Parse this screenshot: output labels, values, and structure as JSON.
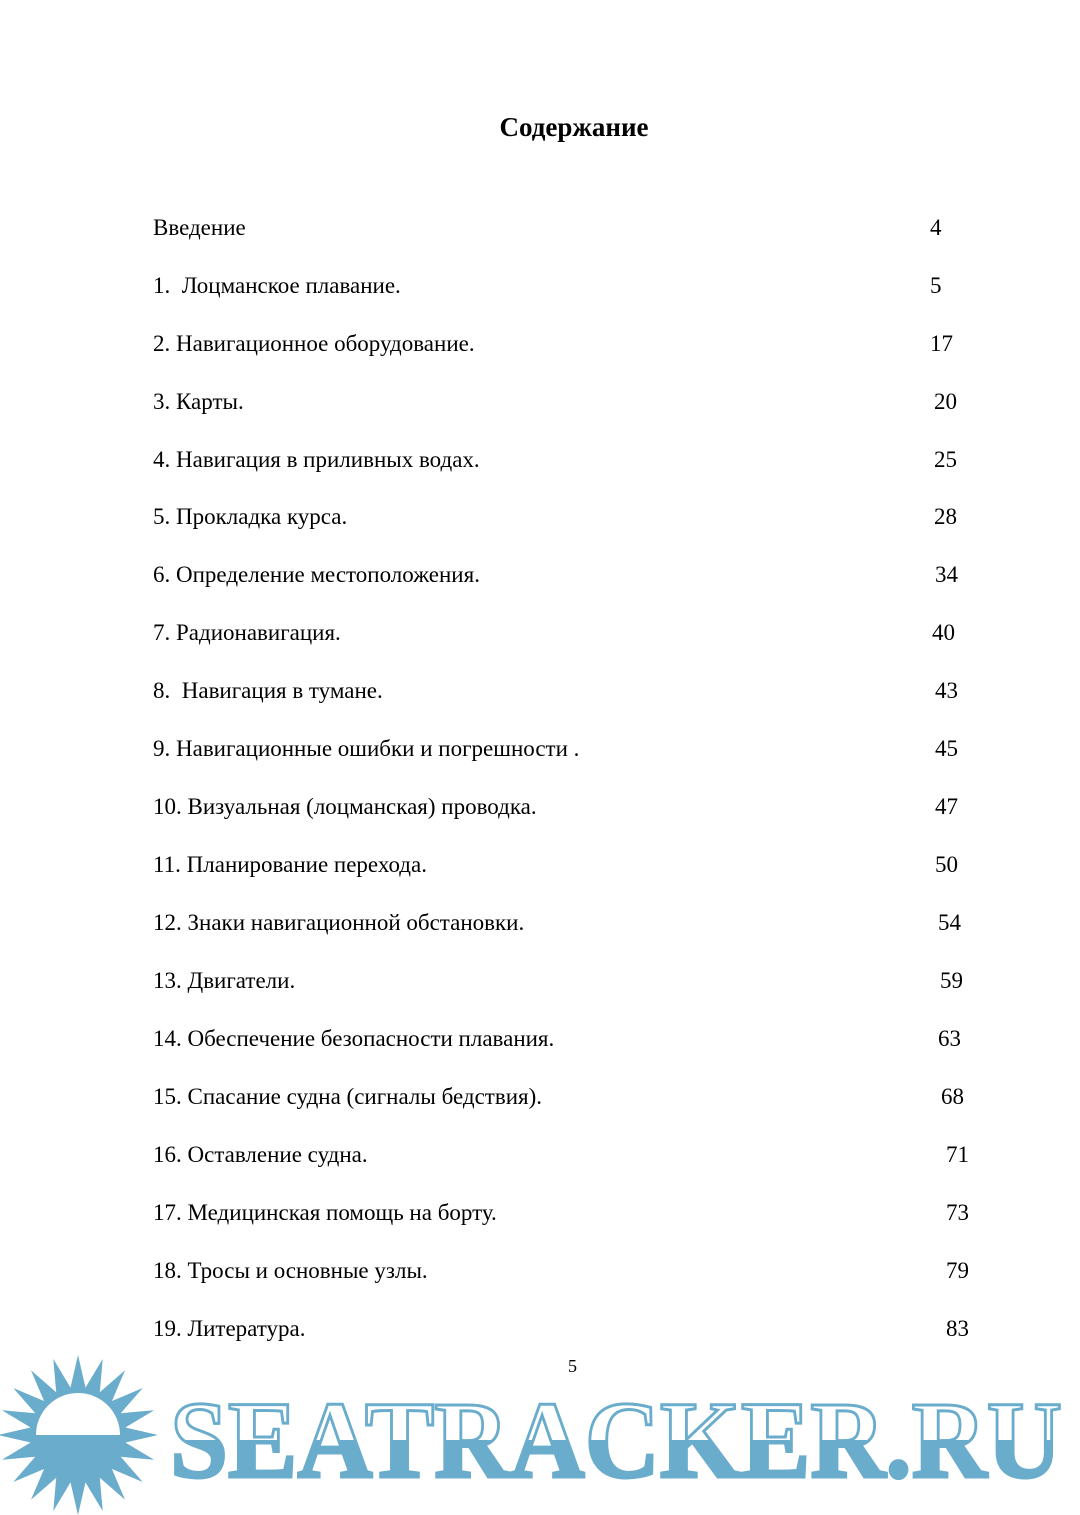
{
  "title": "Содержание",
  "entries": [
    {
      "label": "Введение",
      "page": "4"
    },
    {
      "label": "1.  Лоцманское плавание.",
      "page": "5"
    },
    {
      "label": "2. Навигационное оборудование.",
      "page": "17"
    },
    {
      "label": "3. Карты.",
      "page": "20"
    },
    {
      "label": "4. Навигация в приливных водах.",
      "page": "25"
    },
    {
      "label": "5. Прокладка курса.",
      "page": "28"
    },
    {
      "label": "6. Определение местоположения.",
      "page": "34"
    },
    {
      "label": "7. Радионавигация.",
      "page": "40"
    },
    {
      "label": "8.  Навигация в тумане.",
      "page": "43"
    },
    {
      "label": "9. Навигационные ошибки и погрешности .",
      "page": "45"
    },
    {
      "label": "10. Визуальная (лоцманская) проводка.",
      "page": "47"
    },
    {
      "label": "11. Планирование перехода.",
      "page": "50"
    },
    {
      "label": "12. Знаки навигационной обстановки.",
      "page": "54"
    },
    {
      "label": "13. Двигатели.",
      "page": "59"
    },
    {
      "label": "14. Обеспечение безопасности плавания.",
      "page": "63"
    },
    {
      "label": "15. Спасание судна (сигналы бедствия).",
      "page": "68"
    },
    {
      "label": "16. Оставление судна.",
      "page": "71"
    },
    {
      "label": "17. Медицинская помощь на борту.",
      "page": "73"
    },
    {
      "label": "18. Тросы и основные узлы.",
      "page": "79"
    },
    {
      "label": "19. Литература.",
      "page": "83"
    }
  ],
  "page_number": "5",
  "watermark": {
    "text": "SEATRACKER.RU",
    "color": "#6aaccc"
  }
}
